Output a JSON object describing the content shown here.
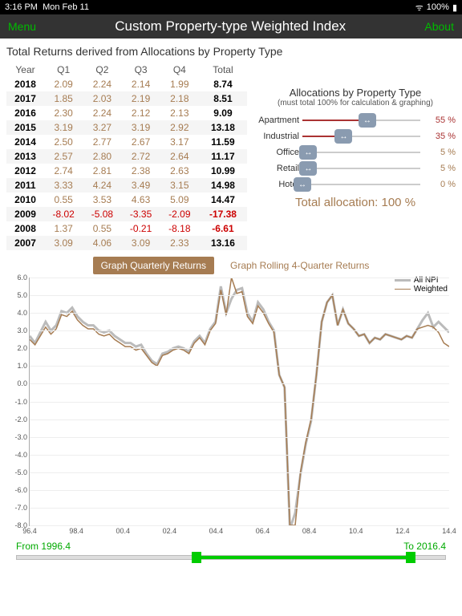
{
  "status": {
    "time": "3:16 PM",
    "date": "Mon Feb 11",
    "battery": "100%"
  },
  "header": {
    "menu": "Menu",
    "title": "Custom Property-type Weighted Index",
    "about": "About"
  },
  "subtitle": "Total Returns derived from Allocations by Property Type",
  "table": {
    "headers": [
      "Year",
      "Q1",
      "Q2",
      "Q3",
      "Q4",
      "Total"
    ],
    "rows": [
      {
        "year": "2018",
        "q": [
          "2.09",
          "2.24",
          "2.14",
          "1.99"
        ],
        "tot": "8.74"
      },
      {
        "year": "2017",
        "q": [
          "1.85",
          "2.03",
          "2.19",
          "2.18"
        ],
        "tot": "8.51"
      },
      {
        "year": "2016",
        "q": [
          "2.30",
          "2.24",
          "2.12",
          "2.13"
        ],
        "tot": "9.09"
      },
      {
        "year": "2015",
        "q": [
          "3.19",
          "3.27",
          "3.19",
          "2.92"
        ],
        "tot": "13.18"
      },
      {
        "year": "2014",
        "q": [
          "2.50",
          "2.77",
          "2.67",
          "3.17"
        ],
        "tot": "11.59"
      },
      {
        "year": "2013",
        "q": [
          "2.57",
          "2.80",
          "2.72",
          "2.64"
        ],
        "tot": "11.17"
      },
      {
        "year": "2012",
        "q": [
          "2.74",
          "2.81",
          "2.38",
          "2.63"
        ],
        "tot": "10.99"
      },
      {
        "year": "2011",
        "q": [
          "3.33",
          "4.24",
          "3.49",
          "3.15"
        ],
        "tot": "14.98"
      },
      {
        "year": "2010",
        "q": [
          "0.55",
          "3.53",
          "4.63",
          "5.09"
        ],
        "tot": "14.47"
      },
      {
        "year": "2009",
        "q": [
          "-8.02",
          "-5.08",
          "-3.35",
          "-2.09"
        ],
        "tot": "-17.38"
      },
      {
        "year": "2008",
        "q": [
          "1.37",
          "0.55",
          "-0.21",
          "-8.18"
        ],
        "tot": "-6.61"
      },
      {
        "year": "2007",
        "q": [
          "3.09",
          "4.06",
          "3.09",
          "2.33"
        ],
        "tot": "13.16"
      }
    ]
  },
  "alloc": {
    "title": "Allocations by Property Type",
    "sub": "(must total 100% for calculation & graphing)",
    "items": [
      {
        "label": "Apartment",
        "pct": 55,
        "color": "#a33"
      },
      {
        "label": "Industrial",
        "pct": 35,
        "color": "#a33"
      },
      {
        "label": "Office",
        "pct": 5,
        "color": "#a67c52"
      },
      {
        "label": "Retail",
        "pct": 5,
        "color": "#a67c52"
      },
      {
        "label": "Hotel",
        "pct": 0,
        "color": "#a67c52"
      }
    ],
    "total_label": "Total allocation: 100 %"
  },
  "chart": {
    "tab_active": "Graph Quarterly Returns",
    "tab_inactive": "Graph Rolling 4-Quarter Returns",
    "legend": [
      {
        "label": "All NPI",
        "color": "#bbb",
        "width": 3
      },
      {
        "label": "Weighted",
        "color": "#a67c52",
        "width": 1.5
      }
    ],
    "ymin": -8,
    "ymax": 6,
    "ystep": 1,
    "xticks": [
      "96.4",
      "98.4",
      "00.4",
      "02.4",
      "04.4",
      "06.4",
      "08.4",
      "10.4",
      "12.4",
      "14.4"
    ],
    "series_npi": [
      2.7,
      2.3,
      2.9,
      3.5,
      3.0,
      3.3,
      4.1,
      4.0,
      4.3,
      3.8,
      3.5,
      3.3,
      3.3,
      3.0,
      2.9,
      3.0,
      2.7,
      2.5,
      2.3,
      2.3,
      2.1,
      2.2,
      1.7,
      1.3,
      1.1,
      1.7,
      1.8,
      2.0,
      2.1,
      2.0,
      1.8,
      2.4,
      2.7,
      2.3,
      3.1,
      3.5,
      5.5,
      4.0,
      4.8,
      5.3,
      5.4,
      4.0,
      3.5,
      4.6,
      4.2,
      3.5,
      3.0,
      0.5,
      -0.2,
      -8.2,
      -7.3,
      -5.1,
      -3.4,
      -2.1,
      0.5,
      3.5,
      4.6,
      5.0,
      3.3,
      4.2,
      3.4,
      3.1,
      2.7,
      2.8,
      2.3,
      2.6,
      2.5,
      2.8,
      2.7,
      2.6,
      2.5,
      2.7,
      2.6,
      3.1,
      3.6,
      4.0,
      3.2,
      3.5,
      3.2,
      2.9
    ],
    "series_weighted": [
      2.5,
      2.2,
      2.7,
      3.2,
      2.8,
      3.1,
      3.9,
      3.8,
      4.1,
      3.6,
      3.3,
      3.1,
      3.1,
      2.8,
      2.7,
      2.8,
      2.5,
      2.3,
      2.1,
      2.1,
      1.9,
      2.0,
      1.6,
      1.2,
      1.0,
      1.6,
      1.7,
      1.9,
      2.0,
      1.9,
      1.7,
      2.3,
      2.6,
      2.2,
      3.0,
      3.4,
      5.3,
      3.9,
      6.0,
      5.1,
      5.2,
      3.8,
      3.4,
      4.4,
      4.0,
      3.4,
      2.9,
      0.5,
      -0.2,
      -8.0,
      -8.0,
      -5.0,
      -3.3,
      -2.0,
      0.5,
      3.5,
      4.6,
      5.0,
      3.3,
      4.2,
      3.4,
      3.1,
      2.7,
      2.8,
      2.3,
      2.6,
      2.5,
      2.8,
      2.7,
      2.6,
      2.5,
      2.7,
      2.6,
      3.1,
      3.2,
      3.3,
      3.2,
      2.9,
      2.3,
      2.1
    ]
  },
  "range": {
    "from_label": "From 1996.4",
    "to_label": "To 2016.4",
    "from_pct": 42,
    "to_pct": 92
  }
}
